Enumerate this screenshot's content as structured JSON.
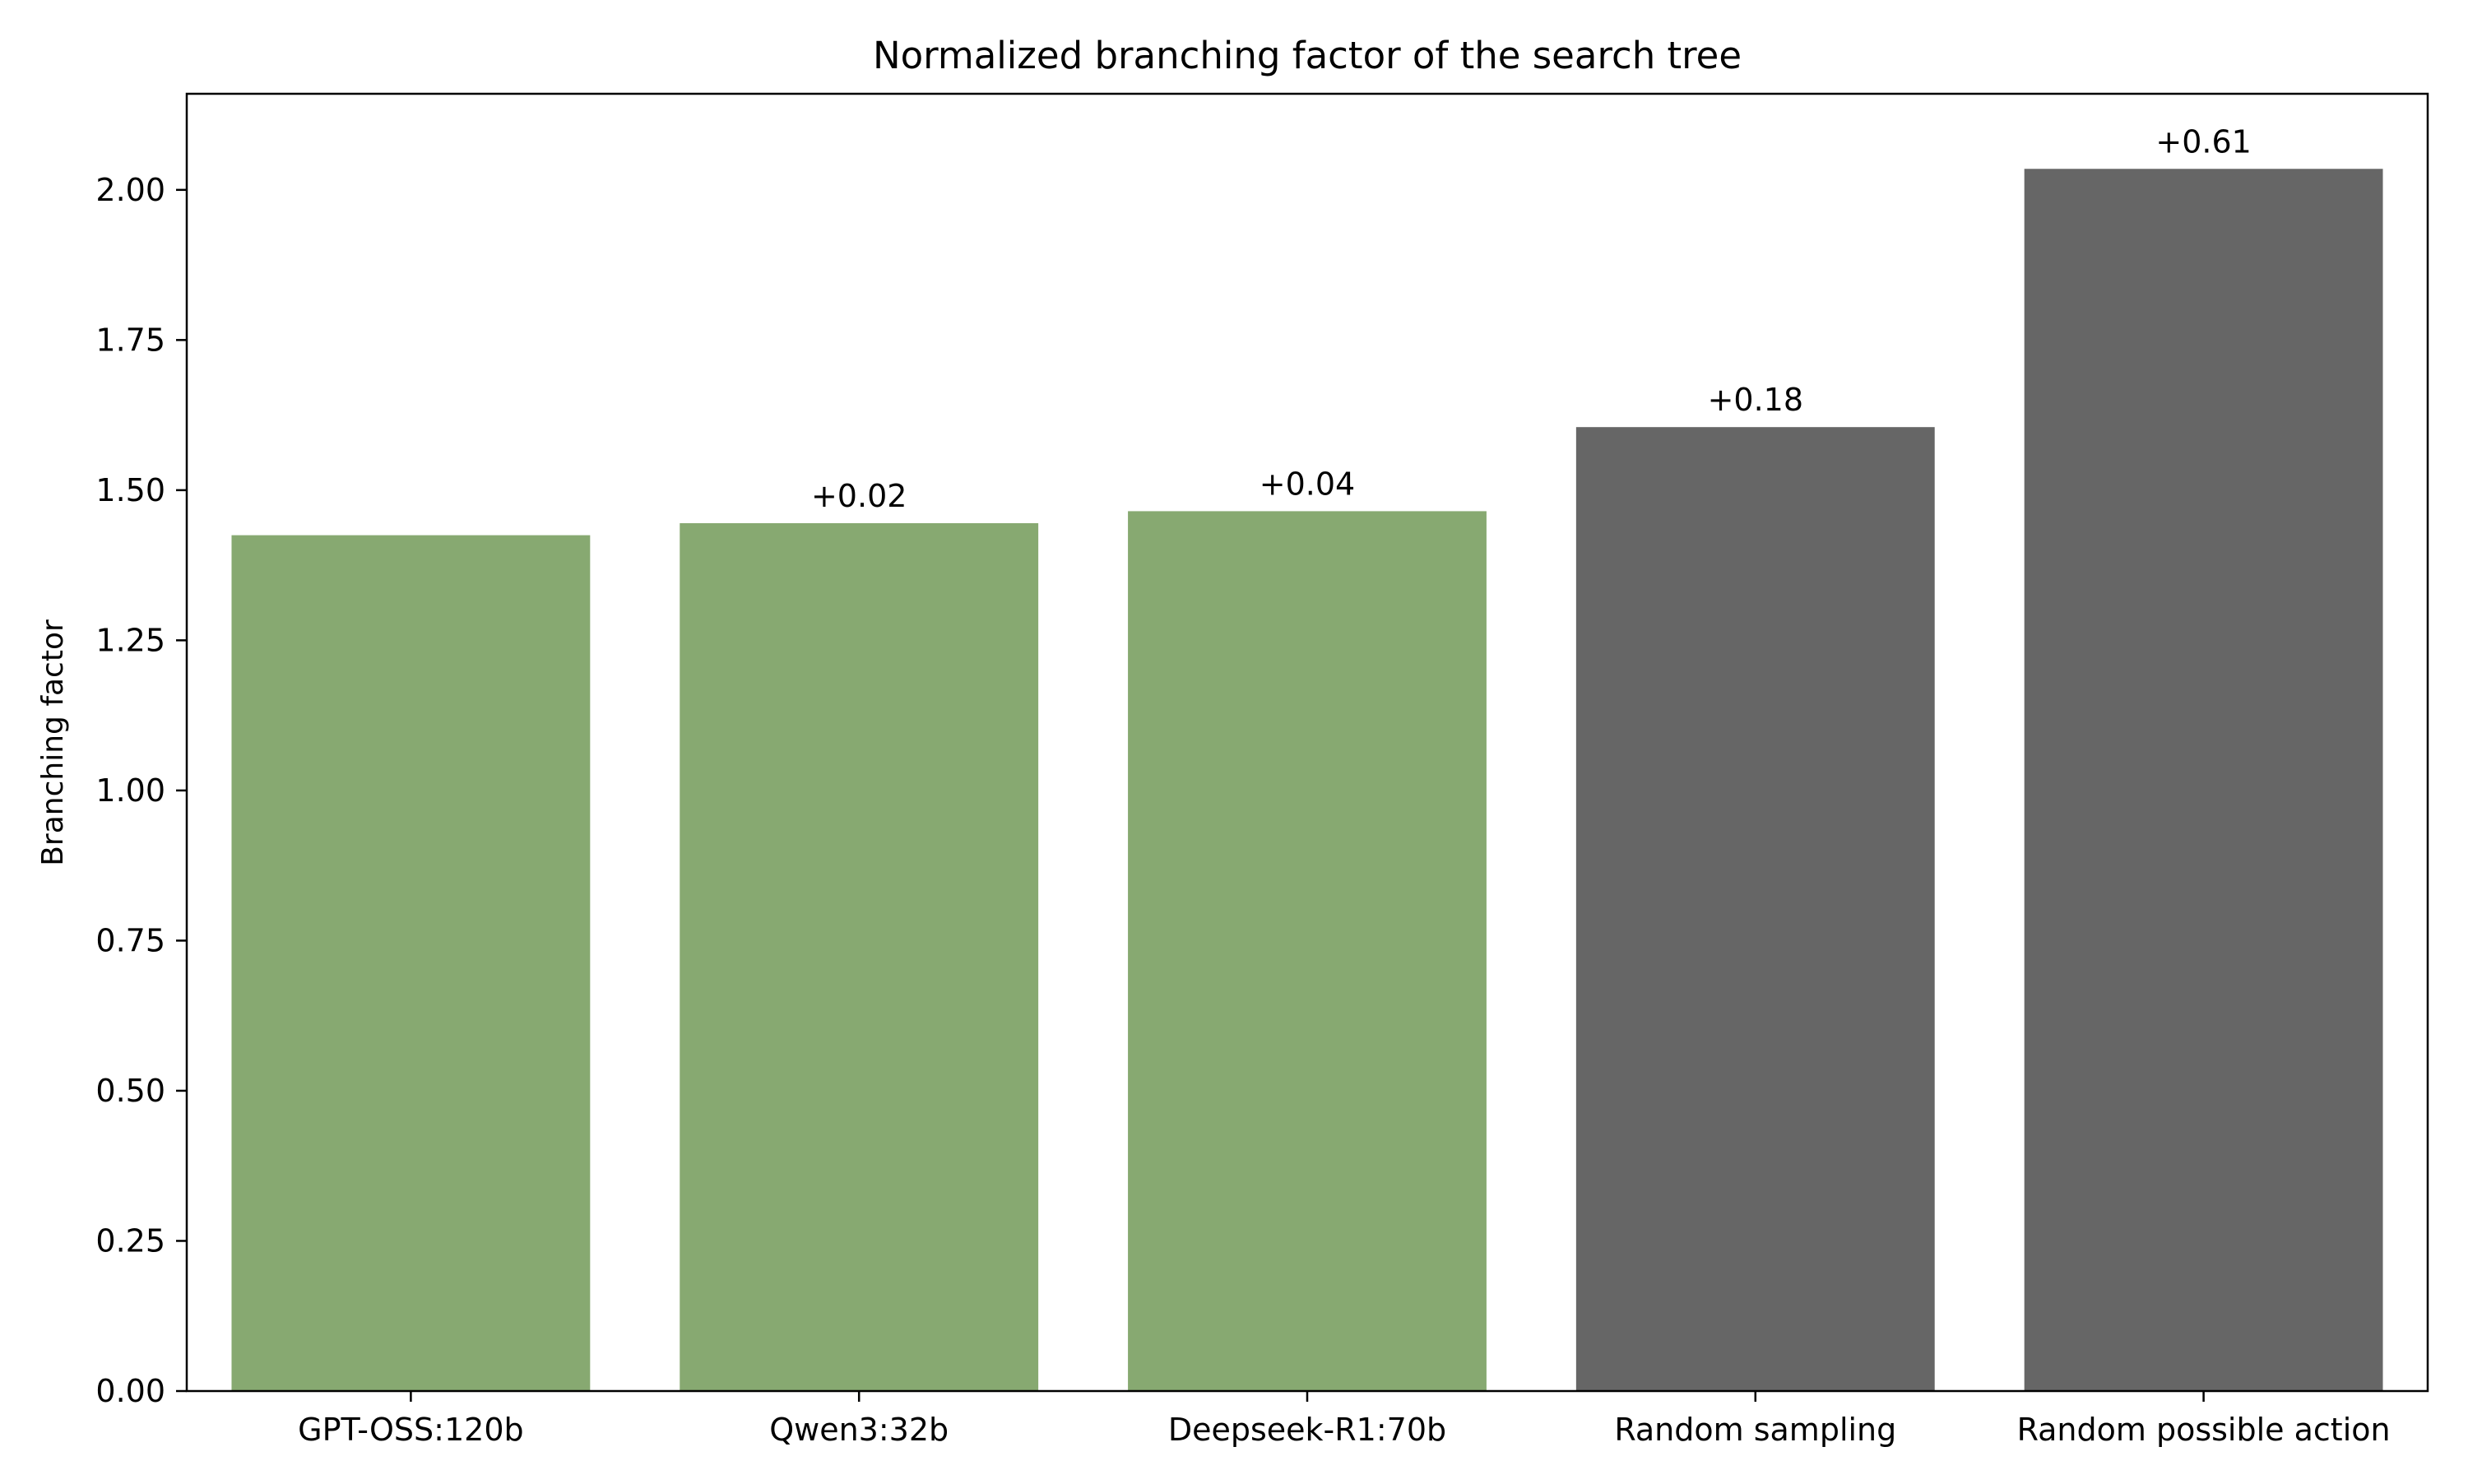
{
  "chart_data": {
    "type": "bar",
    "title": "Normalized branching factor of the search tree",
    "xlabel": "",
    "ylabel": "Branching factor",
    "categories": [
      "GPT-OSS:120b",
      "Qwen3:32b",
      "Deepseek-R1:70b",
      "Random sampling",
      "Random possible action"
    ],
    "values": [
      1.425,
      1.445,
      1.465,
      1.605,
      2.035
    ],
    "bar_labels": [
      "",
      "+0.02",
      "+0.04",
      "+0.18",
      "+0.61"
    ],
    "bar_colors": [
      "#87a971",
      "#87a971",
      "#87a971",
      "#666666",
      "#666666"
    ],
    "ylim": [
      0,
      2.16
    ],
    "yticks": [
      0.0,
      0.25,
      0.5,
      0.75,
      1.0,
      1.25,
      1.5,
      1.75,
      2.0
    ],
    "ytick_labels": [
      "0.00",
      "0.25",
      "0.50",
      "0.75",
      "1.00",
      "1.25",
      "1.50",
      "1.75",
      "2.00"
    ],
    "grid": false,
    "legend": "none"
  }
}
